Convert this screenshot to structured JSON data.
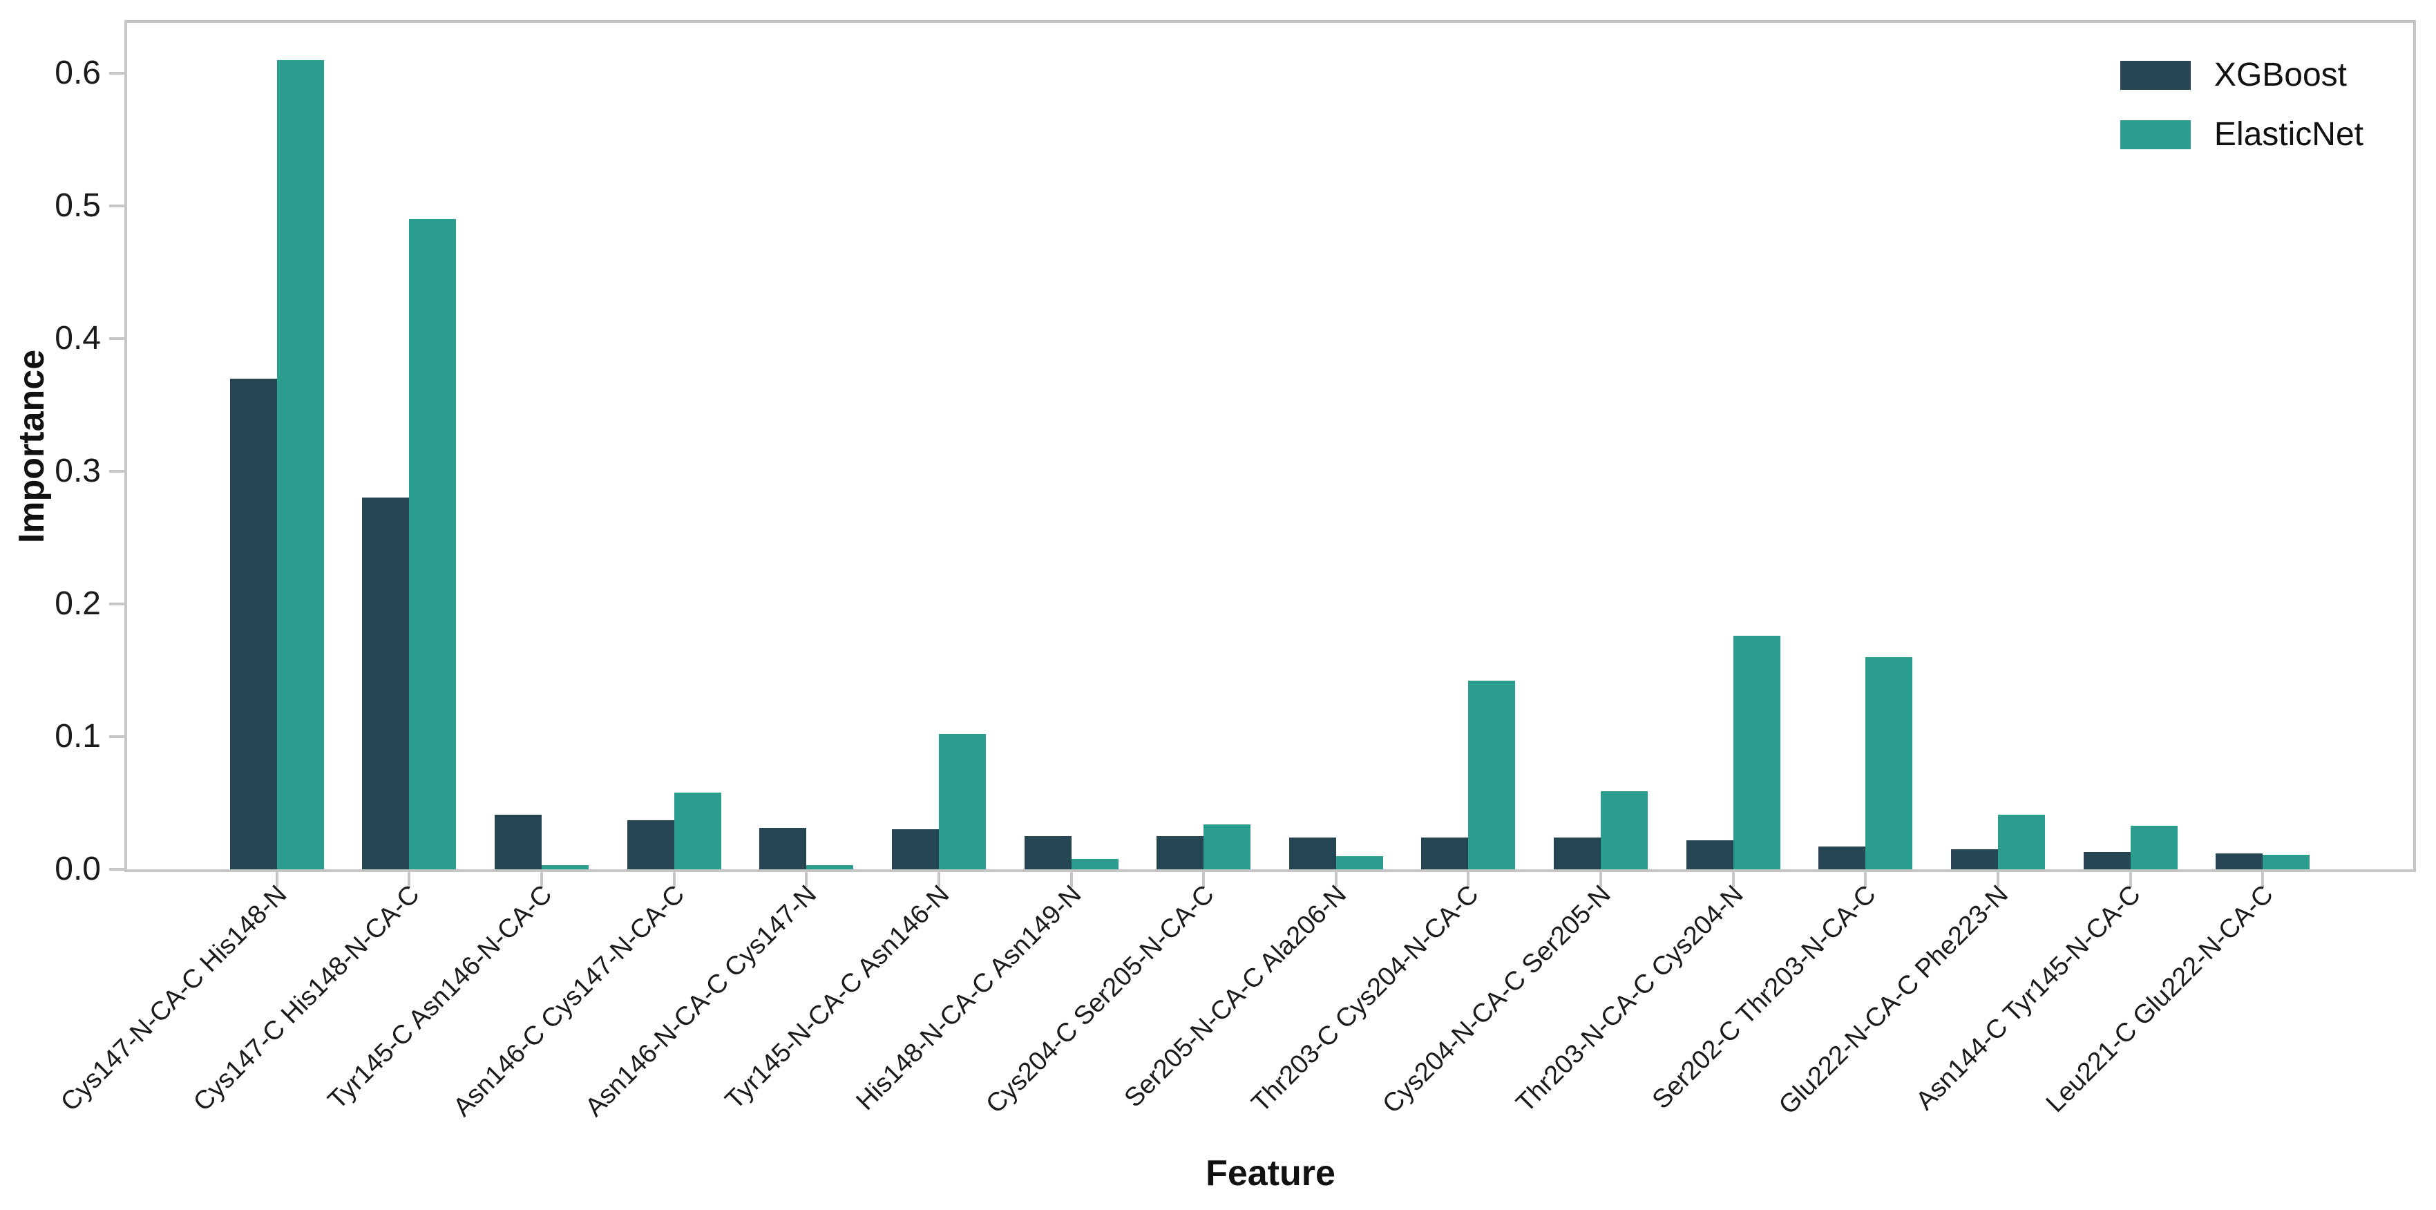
{
  "chart_data": {
    "type": "bar",
    "title": "",
    "xlabel": "Feature",
    "ylabel": "Importance",
    "categories": [
      "Cys147-N-CA-C His148-N",
      "Cys147-C His148-N-CA-C",
      "Tyr145-C Asn146-N-CA-C",
      "Asn146-C Cys147-N-CA-C",
      "Asn146-N-CA-C Cys147-N",
      "Tyr145-N-CA-C Asn146-N",
      "His148-N-CA-C Asn149-N",
      "Cys204-C Ser205-N-CA-C",
      "Ser205-N-CA-C Ala206-N",
      "Thr203-C Cys204-N-CA-C",
      "Cys204-N-CA-C Ser205-N",
      "Thr203-N-CA-C Cys204-N",
      "Ser202-C Thr203-N-CA-C",
      "Glu222-N-CA-C Phe223-N",
      "Asn144-C Tyr145-N-CA-C",
      "Leu221-C Glu222-N-CA-C"
    ],
    "series": [
      {
        "name": "XGBoost",
        "color": "#264653",
        "values": [
          0.37,
          0.28,
          0.041,
          0.037,
          0.031,
          0.03,
          0.025,
          0.025,
          0.024,
          0.024,
          0.024,
          0.022,
          0.017,
          0.015,
          0.013,
          0.012
        ]
      },
      {
        "name": "ElasticNet",
        "color": "#2a9d8f",
        "values": [
          0.61,
          0.49,
          0.003,
          0.058,
          0.003,
          0.102,
          0.008,
          0.034,
          0.01,
          0.142,
          0.059,
          0.176,
          0.16,
          0.041,
          0.033,
          0.011
        ]
      }
    ],
    "ylim": [
      0,
      0.638
    ],
    "yticks": [
      "0.0",
      "0.1",
      "0.2",
      "0.3",
      "0.4",
      "0.5",
      "0.6"
    ],
    "grid": false,
    "legend_position": "upper-right-inside"
  },
  "colors": {
    "spine": "#c6c6c6",
    "tick": "#c6c6c6",
    "text": "#1a1a1a"
  }
}
